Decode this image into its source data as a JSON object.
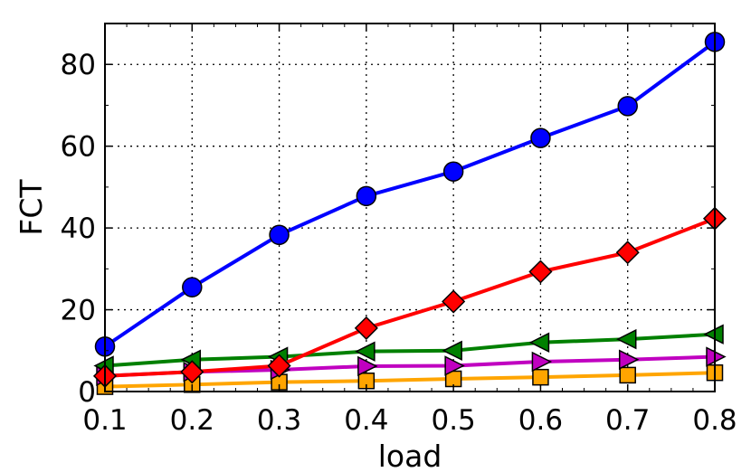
{
  "chart_data": {
    "type": "line",
    "xlabel": "load",
    "ylabel": "FCT",
    "xlim": [
      0.1,
      0.8
    ],
    "ylim": [
      0,
      90
    ],
    "x_ticks": [
      0.1,
      0.2,
      0.3,
      0.4,
      0.5,
      0.6,
      0.7,
      0.8
    ],
    "x_tick_labels": [
      "0.1",
      "0.2",
      "0.3",
      "0.4",
      "0.5",
      "0.6",
      "0.7",
      "0.8"
    ],
    "y_ticks": [
      0,
      20,
      40,
      60,
      80
    ],
    "y_tick_labels": [
      "0",
      "20",
      "40",
      "60",
      "80"
    ],
    "grid": true,
    "legend": "none",
    "x": [
      0.1,
      0.2,
      0.3,
      0.4,
      0.5,
      0.6,
      0.7,
      0.8
    ],
    "series": [
      {
        "color": "#0000ff",
        "marker": "circle",
        "values": [
          11,
          25.5,
          38.3,
          47.8,
          53.8,
          62,
          69.8,
          85.5
        ]
      },
      {
        "color": "#ff0000",
        "marker": "diamond",
        "values": [
          3.8,
          4.8,
          6.3,
          15.5,
          22,
          29.3,
          34,
          42.3
        ]
      },
      {
        "color": "#008000",
        "marker": "triangle-left",
        "values": [
          6.3,
          7.8,
          8.5,
          9.8,
          10,
          12,
          12.8,
          14
        ]
      },
      {
        "color": "#c000c0",
        "marker": "triangle-right",
        "values": [
          3.8,
          4.8,
          5.3,
          6.2,
          6.3,
          7.3,
          7.8,
          8.5
        ]
      },
      {
        "color": "#ffa500",
        "marker": "square",
        "values": [
          1.2,
          1.7,
          2.3,
          2.6,
          3.1,
          3.5,
          4,
          4.6
        ]
      }
    ]
  }
}
